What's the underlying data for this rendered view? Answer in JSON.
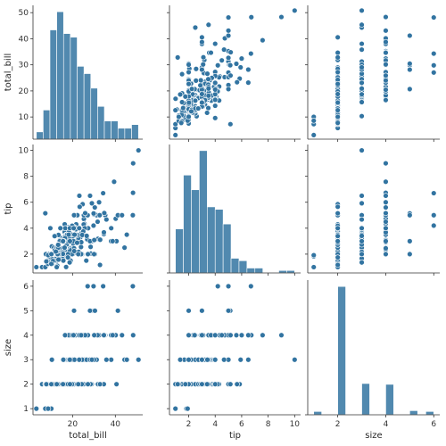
{
  "chart_data": {
    "type": "pairplot",
    "variables": [
      "total_bill",
      "tip",
      "size"
    ],
    "colors": {
      "series": "#3274a1",
      "marker_edge": "#ffffff",
      "axis": "#333333",
      "text": "#262626"
    },
    "axes": {
      "total_bill": {
        "label": "total_bill",
        "range": [
          1.5,
          52.8
        ],
        "ticks": [
          10,
          20,
          30,
          40,
          50
        ],
        "tick_labels": [
          "10",
          "20",
          "30",
          "40",
          "50"
        ],
        "x_ticks": [
          20,
          40
        ],
        "x_tick_labels": [
          "20",
          "40"
        ]
      },
      "tip": {
        "label": "tip",
        "range": [
          0.55,
          10.45
        ],
        "ticks": [
          2,
          4,
          6,
          8,
          10
        ],
        "tick_labels": [
          "2",
          "4",
          "6",
          "8",
          "10"
        ]
      },
      "size": {
        "label": "size",
        "range": [
          0.75,
          6.25
        ],
        "ticks": [
          1,
          2,
          3,
          4,
          5,
          6
        ],
        "tick_labels": [
          "1",
          "2",
          "3",
          "4",
          "5",
          "6"
        ],
        "x_ticks": [
          2,
          4,
          6
        ],
        "x_tick_labels": [
          "2",
          "4",
          "6"
        ]
      }
    },
    "hist_total_bill": {
      "bins": [
        [
          3.07,
          6.25
        ],
        [
          6.25,
          9.43
        ],
        [
          9.43,
          12.61
        ],
        [
          12.61,
          15.79
        ],
        [
          15.79,
          18.97
        ],
        [
          18.97,
          22.15
        ],
        [
          22.15,
          25.33
        ],
        [
          25.33,
          28.51
        ],
        [
          28.51,
          31.69
        ],
        [
          31.69,
          34.87
        ],
        [
          34.87,
          38.05
        ],
        [
          38.05,
          41.23
        ],
        [
          41.23,
          44.41
        ],
        [
          44.41,
          47.59
        ],
        [
          47.59,
          50.81
        ]
      ],
      "counts": [
        2,
        8,
        30,
        35,
        29,
        28,
        20,
        18,
        14,
        9,
        5,
        5,
        3,
        3,
        4
      ]
    },
    "hist_tip": {
      "bins": [
        [
          1.0,
          1.6
        ],
        [
          1.6,
          2.2
        ],
        [
          2.2,
          2.8
        ],
        [
          2.8,
          3.4
        ],
        [
          3.4,
          4.0
        ],
        [
          4.0,
          4.6
        ],
        [
          4.6,
          5.2
        ],
        [
          5.2,
          5.8
        ],
        [
          5.8,
          6.4
        ],
        [
          6.4,
          7.0
        ],
        [
          7.0,
          7.6
        ],
        [
          7.6,
          8.2
        ],
        [
          8.2,
          8.8
        ],
        [
          8.8,
          9.4
        ],
        [
          9.4,
          10.0
        ]
      ],
      "counts": [
        18,
        40,
        34,
        50,
        27,
        26,
        20,
        6,
        5,
        2,
        2,
        0,
        0,
        1,
        1
      ]
    },
    "hist_size": {
      "bins": [
        [
          1.0,
          1.33
        ],
        [
          1.33,
          1.67
        ],
        [
          1.67,
          2.0
        ],
        [
          2.0,
          2.33
        ],
        [
          2.33,
          2.67
        ],
        [
          2.67,
          3.0
        ],
        [
          3.0,
          3.33
        ],
        [
          3.33,
          3.67
        ],
        [
          3.67,
          4.0
        ],
        [
          4.0,
          4.33
        ],
        [
          4.33,
          4.67
        ],
        [
          4.67,
          5.0
        ],
        [
          5.0,
          5.33
        ],
        [
          5.33,
          5.67
        ],
        [
          5.67,
          6.0
        ]
      ],
      "counts": [
        4,
        0,
        0,
        156,
        0,
        0,
        38,
        0,
        0,
        37,
        0,
        0,
        5,
        0,
        4
      ]
    },
    "points": [
      [
        16.99,
        1.01,
        2
      ],
      [
        10.34,
        1.66,
        3
      ],
      [
        21.01,
        3.5,
        3
      ],
      [
        23.68,
        3.31,
        2
      ],
      [
        24.59,
        3.61,
        4
      ],
      [
        25.29,
        4.71,
        4
      ],
      [
        8.77,
        2,
        2
      ],
      [
        26.88,
        3.12,
        4
      ],
      [
        15.04,
        1.96,
        2
      ],
      [
        14.78,
        3.23,
        2
      ],
      [
        10.27,
        1.71,
        2
      ],
      [
        35.26,
        5,
        4
      ],
      [
        15.42,
        1.57,
        2
      ],
      [
        18.43,
        3,
        4
      ],
      [
        14.83,
        3.02,
        2
      ],
      [
        21.58,
        3.92,
        2
      ],
      [
        10.33,
        1.67,
        3
      ],
      [
        16.29,
        3.71,
        3
      ],
      [
        16.97,
        3.5,
        3
      ],
      [
        20.65,
        3.35,
        3
      ],
      [
        17.92,
        4.08,
        2
      ],
      [
        20.29,
        2.75,
        2
      ],
      [
        15.77,
        2.23,
        2
      ],
      [
        39.42,
        7.58,
        4
      ],
      [
        19.82,
        3.18,
        2
      ],
      [
        17.81,
        2.34,
        4
      ],
      [
        13.37,
        2,
        2
      ],
      [
        12.69,
        2,
        2
      ],
      [
        21.7,
        4.3,
        2
      ],
      [
        19.65,
        3,
        2
      ],
      [
        9.55,
        1.45,
        2
      ],
      [
        18.35,
        2.5,
        4
      ],
      [
        15.06,
        3,
        2
      ],
      [
        20.69,
        2.45,
        4
      ],
      [
        17.78,
        3.27,
        2
      ],
      [
        24.06,
        3.6,
        3
      ],
      [
        16.31,
        2,
        3
      ],
      [
        16.93,
        3.07,
        3
      ],
      [
        18.69,
        2.31,
        3
      ],
      [
        31.27,
        5,
        3
      ],
      [
        16.04,
        2.24,
        3
      ],
      [
        17.46,
        2.54,
        2
      ],
      [
        13.94,
        3.06,
        2
      ],
      [
        9.68,
        1.32,
        2
      ],
      [
        30.4,
        5.6,
        4
      ],
      [
        18.29,
        3,
        2
      ],
      [
        22.23,
        5,
        2
      ],
      [
        32.4,
        6,
        4
      ],
      [
        28.55,
        2.05,
        3
      ],
      [
        18.04,
        3,
        2
      ],
      [
        12.54,
        2.5,
        2
      ],
      [
        10.29,
        2.6,
        2
      ],
      [
        34.81,
        5.2,
        4
      ],
      [
        9.94,
        1.56,
        2
      ],
      [
        25.56,
        4.34,
        4
      ],
      [
        19.49,
        3.51,
        2
      ],
      [
        38.01,
        3,
        4
      ],
      [
        26.41,
        1.5,
        2
      ],
      [
        11.24,
        1.76,
        2
      ],
      [
        48.27,
        6.73,
        4
      ],
      [
        20.29,
        3.21,
        2
      ],
      [
        13.81,
        2,
        2
      ],
      [
        11.02,
        1.98,
        2
      ],
      [
        18.29,
        3.76,
        4
      ],
      [
        17.59,
        2.64,
        3
      ],
      [
        20.08,
        3.15,
        3
      ],
      [
        16.45,
        2.47,
        2
      ],
      [
        3.07,
        1,
        1
      ],
      [
        20.23,
        2.01,
        2
      ],
      [
        15.01,
        2.09,
        2
      ],
      [
        12.02,
        1.97,
        2
      ],
      [
        17.07,
        3,
        3
      ],
      [
        26.86,
        3.14,
        2
      ],
      [
        25.28,
        5,
        2
      ],
      [
        14.73,
        2.2,
        2
      ],
      [
        10.51,
        1.25,
        2
      ],
      [
        17.92,
        3.08,
        2
      ],
      [
        27.2,
        4,
        4
      ],
      [
        22.76,
        3,
        2
      ],
      [
        17.29,
        2.71,
        2
      ],
      [
        19.44,
        3,
        2
      ],
      [
        16.66,
        3.4,
        2
      ],
      [
        10.07,
        1.83,
        1
      ],
      [
        32.68,
        5,
        2
      ],
      [
        15.98,
        2.03,
        2
      ],
      [
        34.83,
        5.17,
        4
      ],
      [
        13.03,
        2,
        2
      ],
      [
        18.28,
        4,
        2
      ],
      [
        24.71,
        5.85,
        2
      ],
      [
        21.16,
        3,
        2
      ],
      [
        28.97,
        3,
        2
      ],
      [
        22.49,
        3.5,
        2
      ],
      [
        5.75,
        1,
        2
      ],
      [
        16.32,
        4.3,
        2
      ],
      [
        22.75,
        3.25,
        2
      ],
      [
        40.17,
        4.73,
        4
      ],
      [
        27.28,
        4,
        2
      ],
      [
        12.03,
        1.5,
        2
      ],
      [
        21.01,
        3,
        2
      ],
      [
        12.46,
        1.5,
        2
      ],
      [
        11.35,
        2.5,
        2
      ],
      [
        15.38,
        3,
        2
      ],
      [
        44.3,
        2.5,
        3
      ],
      [
        22.42,
        3.48,
        2
      ],
      [
        20.92,
        4.08,
        2
      ],
      [
        15.36,
        1.64,
        2
      ],
      [
        20.49,
        4.06,
        2
      ],
      [
        25.21,
        4.29,
        2
      ],
      [
        18.24,
        3.76,
        2
      ],
      [
        14.31,
        4,
        2
      ],
      [
        14,
        3,
        2
      ],
      [
        7.25,
        1,
        1
      ],
      [
        38.07,
        4,
        3
      ],
      [
        23.95,
        2.55,
        2
      ],
      [
        25.71,
        4,
        3
      ],
      [
        17.31,
        3.5,
        2
      ],
      [
        29.93,
        5.07,
        4
      ],
      [
        10.65,
        1.5,
        2
      ],
      [
        12.43,
        1.8,
        2
      ],
      [
        24.08,
        2.92,
        4
      ],
      [
        11.69,
        2.31,
        2
      ],
      [
        13.42,
        1.68,
        2
      ],
      [
        14.26,
        2.5,
        2
      ],
      [
        15.95,
        2,
        2
      ],
      [
        12.48,
        2.52,
        2
      ],
      [
        29.8,
        4.2,
        6
      ],
      [
        8.52,
        1.48,
        2
      ],
      [
        14.52,
        2,
        2
      ],
      [
        11.38,
        2,
        2
      ],
      [
        22.82,
        2.18,
        3
      ],
      [
        19.08,
        1.5,
        2
      ],
      [
        20.27,
        2.83,
        2
      ],
      [
        11.17,
        1.5,
        2
      ],
      [
        12.26,
        2,
        2
      ],
      [
        18.26,
        3.25,
        2
      ],
      [
        8.51,
        1.25,
        2
      ],
      [
        10.33,
        2,
        2
      ],
      [
        14.15,
        2,
        2
      ],
      [
        16,
        2,
        2
      ],
      [
        13.16,
        2.75,
        2
      ],
      [
        17.47,
        3.5,
        2
      ],
      [
        34.3,
        6.7,
        6
      ],
      [
        41.19,
        5,
        5
      ],
      [
        27.05,
        5,
        6
      ],
      [
        16.43,
        2.3,
        2
      ],
      [
        8.35,
        1.5,
        2
      ],
      [
        18.64,
        1.36,
        3
      ],
      [
        11.87,
        1.63,
        2
      ],
      [
        9.78,
        1.73,
        2
      ],
      [
        7.51,
        2,
        2
      ],
      [
        14.07,
        2.5,
        2
      ],
      [
        13.13,
        2,
        2
      ],
      [
        17.26,
        2.74,
        3
      ],
      [
        24.55,
        2,
        4
      ],
      [
        19.77,
        2,
        4
      ],
      [
        29.85,
        5.14,
        5
      ],
      [
        48.17,
        5,
        6
      ],
      [
        25,
        3.75,
        4
      ],
      [
        13.39,
        2.61,
        2
      ],
      [
        16.49,
        2,
        4
      ],
      [
        21.5,
        3.5,
        4
      ],
      [
        12.66,
        2.5,
        2
      ],
      [
        16.21,
        2,
        3
      ],
      [
        13.81,
        2,
        2
      ],
      [
        17.51,
        3,
        2
      ],
      [
        24.52,
        3.48,
        3
      ],
      [
        20.76,
        2.24,
        2
      ],
      [
        31.71,
        4.5,
        4
      ],
      [
        10.59,
        1.61,
        2
      ],
      [
        10.63,
        2,
        2
      ],
      [
        50.81,
        10,
        3
      ],
      [
        15.81,
        3.16,
        2
      ],
      [
        7.25,
        5.15,
        2
      ],
      [
        31.85,
        3.18,
        2
      ],
      [
        16.82,
        4,
        2
      ],
      [
        32.9,
        3.11,
        2
      ],
      [
        17.89,
        2,
        2
      ],
      [
        14.48,
        2,
        2
      ],
      [
        9.6,
        4,
        2
      ],
      [
        34.63,
        3.55,
        2
      ],
      [
        34.65,
        3.68,
        4
      ],
      [
        23.33,
        5.65,
        2
      ],
      [
        45.35,
        3.5,
        3
      ],
      [
        23.17,
        6.5,
        4
      ],
      [
        40.55,
        3,
        2
      ],
      [
        20.69,
        5,
        5
      ],
      [
        20.9,
        3.5,
        3
      ],
      [
        30.46,
        2,
        5
      ],
      [
        18.15,
        3.5,
        3
      ],
      [
        23.1,
        4,
        3
      ],
      [
        15.69,
        1.5,
        2
      ],
      [
        19.81,
        4.19,
        2
      ],
      [
        28.44,
        2.56,
        2
      ],
      [
        15.48,
        2.02,
        2
      ],
      [
        16.58,
        4,
        2
      ],
      [
        7.56,
        1.44,
        2
      ],
      [
        10.34,
        2,
        2
      ],
      [
        43.11,
        5,
        4
      ],
      [
        13,
        2,
        2
      ],
      [
        13.51,
        2,
        2
      ],
      [
        18.71,
        4,
        3
      ],
      [
        12.74,
        2.01,
        2
      ],
      [
        13,
        2,
        2
      ],
      [
        16.4,
        2.5,
        2
      ],
      [
        20.53,
        4,
        4
      ],
      [
        16.47,
        3.23,
        3
      ],
      [
        26.59,
        3.41,
        3
      ],
      [
        38.73,
        3,
        4
      ],
      [
        24.27,
        2.03,
        2
      ],
      [
        12.76,
        2.23,
        2
      ],
      [
        30.06,
        2,
        3
      ],
      [
        25.89,
        5.16,
        4
      ],
      [
        48.33,
        9,
        4
      ],
      [
        13.27,
        2.5,
        2
      ],
      [
        28.17,
        6.5,
        3
      ],
      [
        12.9,
        1.1,
        2
      ],
      [
        28.15,
        3,
        5
      ],
      [
        11.59,
        1.5,
        2
      ],
      [
        7.74,
        1.44,
        2
      ],
      [
        30.14,
        3.09,
        4
      ],
      [
        12.16,
        2.2,
        2
      ],
      [
        13.42,
        3.48,
        2
      ],
      [
        8.58,
        1.92,
        1
      ],
      [
        15.98,
        3,
        3
      ],
      [
        13.42,
        1.58,
        2
      ],
      [
        16.27,
        2.5,
        2
      ],
      [
        10.09,
        2,
        2
      ],
      [
        20.45,
        3,
        4
      ],
      [
        13.28,
        2.72,
        2
      ],
      [
        22.12,
        2.88,
        2
      ],
      [
        24.01,
        2,
        4
      ],
      [
        15.69,
        3,
        3
      ],
      [
        11.61,
        3.39,
        2
      ],
      [
        10.77,
        1.47,
        2
      ],
      [
        15.53,
        3,
        2
      ],
      [
        10.07,
        1.25,
        2
      ],
      [
        12.6,
        1,
        2
      ],
      [
        32.83,
        1.17,
        2
      ],
      [
        35.83,
        4.67,
        3
      ],
      [
        29.03,
        5.92,
        3
      ],
      [
        27.18,
        2,
        2
      ],
      [
        22.67,
        2,
        2
      ],
      [
        17.82,
        1.75,
        2
      ],
      [
        18.78,
        3,
        2
      ]
    ]
  }
}
